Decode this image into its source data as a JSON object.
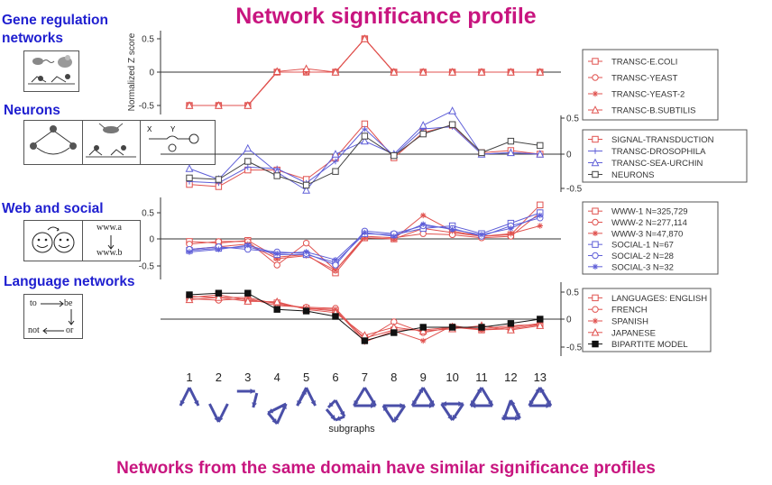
{
  "page": {
    "title": "Network significance profile",
    "footer": "Networks from the same domain have similar significance profiles"
  },
  "sections": [
    {
      "label": "Gene regulation networks"
    },
    {
      "label": "Neurons"
    },
    {
      "label": "Web and social"
    },
    {
      "label": "Language networks"
    }
  ],
  "icons": {
    "web": {
      "top": "www.a",
      "bottom": "www.b"
    },
    "language": {
      "to": "to",
      "be": "be",
      "not": "not",
      "or": "or"
    }
  },
  "colors": {
    "title": "#c8157f",
    "section_label": "#1f1fd0",
    "red": "#e0524f",
    "blue": "#5f5fd8",
    "gray": "#444444",
    "black": "#111111"
  },
  "chart_data": {
    "type": "line",
    "x": [
      1,
      2,
      3,
      4,
      5,
      6,
      7,
      8,
      9,
      10,
      11,
      12,
      13
    ],
    "xlabel": "subgraphs",
    "panels": [
      {
        "ylabel": "Normalized Z score",
        "yticks": [
          "0.5",
          "0",
          "-0.5"
        ],
        "ylim": [
          -0.7,
          0.65
        ],
        "axis_side": "left",
        "series": [
          {
            "name": "TRANSC-E.COLI",
            "color": "#e0524f",
            "marker": "square",
            "values": [
              -0.5,
              -0.5,
              -0.5,
              0,
              0,
              0,
              0.5,
              0,
              0,
              0,
              0,
              0,
              0
            ]
          },
          {
            "name": "TRANSC-YEAST",
            "color": "#e0524f",
            "marker": "circle",
            "values": [
              -0.5,
              -0.5,
              -0.5,
              0,
              0,
              0,
              0.5,
              0,
              0,
              0,
              0,
              0,
              0
            ]
          },
          {
            "name": "TRANSC-YEAST-2",
            "color": "#e0524f",
            "marker": "star",
            "values": [
              -0.5,
              -0.5,
              -0.5,
              0,
              0,
              0,
              0.5,
              0,
              0,
              0,
              0,
              0,
              0
            ]
          },
          {
            "name": "TRANSC-B.SUBTILIS",
            "color": "#e0524f",
            "marker": "triangle",
            "values": [
              -0.5,
              -0.5,
              -0.5,
              0.01,
              0.05,
              0,
              0.5,
              0,
              0,
              0,
              0,
              0,
              0
            ]
          }
        ]
      },
      {
        "ylabel": "",
        "yticks": [
          "0.5",
          "0",
          "-0.5"
        ],
        "ylim": [
          -0.6,
          0.6
        ],
        "axis_side": "right",
        "series": [
          {
            "name": "SIGNAL-TRANSDUCTION",
            "color": "#e0524f",
            "marker": "square",
            "values": [
              -0.42,
              -0.45,
              -0.22,
              -0.22,
              -0.35,
              -0.05,
              0.42,
              -0.05,
              0.3,
              0.4,
              0.02,
              0.05,
              0.0
            ]
          },
          {
            "name": "TRANSC-DROSOPHILA",
            "color": "#5f5fd8",
            "marker": "plus",
            "values": [
              -0.38,
              -0.4,
              -0.18,
              -0.2,
              -0.4,
              -0.1,
              0.35,
              -0.02,
              0.35,
              0.38,
              0.0,
              0.02,
              0.0
            ]
          },
          {
            "name": "TRANSC-SEA-URCHIN",
            "color": "#5f5fd8",
            "marker": "triangle",
            "values": [
              -0.2,
              -0.35,
              0.08,
              -0.25,
              -0.5,
              0.0,
              0.18,
              0.0,
              0.4,
              0.6,
              0.0,
              0.02,
              0.0
            ]
          },
          {
            "name": "NEURONS",
            "color": "#444444",
            "marker": "square",
            "values": [
              -0.33,
              -0.35,
              -0.1,
              -0.3,
              -0.43,
              -0.24,
              0.25,
              -0.02,
              0.28,
              0.41,
              0.02,
              0.18,
              0.12
            ]
          }
        ]
      },
      {
        "ylabel": "",
        "yticks": [
          "0.5",
          "0",
          "-0.5"
        ],
        "ylim": [
          -0.75,
          0.72
        ],
        "axis_side": "left",
        "series": [
          {
            "name": "WWW-1 N=325,729",
            "color": "#e0524f",
            "marker": "square",
            "values": [
              -0.05,
              -0.08,
              -0.03,
              -0.35,
              -0.3,
              -0.65,
              0.02,
              0.0,
              0.2,
              0.12,
              0.05,
              0.08,
              0.65
            ]
          },
          {
            "name": "WWW-2 N=277,114",
            "color": "#e0524f",
            "marker": "circle",
            "values": [
              -0.1,
              -0.05,
              -0.05,
              -0.5,
              -0.08,
              -0.6,
              0.05,
              0.02,
              0.1,
              0.08,
              0.02,
              0.05,
              0.5
            ]
          },
          {
            "name": "WWW-3 N=47,870",
            "color": "#e0524f",
            "marker": "star",
            "values": [
              -0.2,
              -0.15,
              -0.1,
              -0.38,
              -0.32,
              -0.6,
              0.02,
              0.0,
              0.45,
              0.15,
              0.05,
              0.1,
              0.25
            ]
          },
          {
            "name": "SOCIAL-1 N=67",
            "color": "#5f5fd8",
            "marker": "square",
            "values": [
              -0.22,
              -0.18,
              -0.15,
              -0.3,
              -0.3,
              -0.45,
              0.1,
              0.08,
              0.2,
              0.25,
              0.1,
              0.3,
              0.5
            ]
          },
          {
            "name": "SOCIAL-2 N=28",
            "color": "#5f5fd8",
            "marker": "circle",
            "values": [
              -0.2,
              -0.15,
              -0.2,
              -0.25,
              -0.28,
              -0.5,
              0.15,
              0.1,
              0.25,
              0.2,
              0.05,
              0.25,
              0.4
            ]
          },
          {
            "name": "SOCIAL-3 N=32",
            "color": "#5f5fd8",
            "marker": "star",
            "values": [
              -0.25,
              -0.2,
              -0.12,
              -0.28,
              -0.25,
              -0.4,
              0.12,
              0.05,
              0.28,
              0.18,
              0.08,
              0.2,
              0.45
            ]
          }
        ]
      },
      {
        "ylabel": "",
        "yticks": [
          "0.5",
          "0",
          "-0.5"
        ],
        "ylim": [
          -0.62,
          0.62
        ],
        "axis_side": "right",
        "series": [
          {
            "name": "LANGUAGES: ENGLISH",
            "color": "#e0524f",
            "marker": "square",
            "values": [
              0.4,
              0.45,
              0.35,
              0.3,
              0.2,
              0.15,
              -0.35,
              -0.2,
              -0.2,
              -0.15,
              -0.2,
              -0.18,
              -0.1
            ]
          },
          {
            "name": "FRENCH",
            "color": "#e0524f",
            "marker": "circle",
            "values": [
              0.38,
              0.35,
              0.38,
              0.25,
              0.22,
              0.2,
              -0.38,
              -0.05,
              -0.25,
              -0.15,
              -0.18,
              -0.12,
              -0.1
            ]
          },
          {
            "name": "SPANISH",
            "color": "#e0524f",
            "marker": "star",
            "values": [
              0.42,
              0.4,
              0.4,
              0.28,
              0.2,
              0.18,
              -0.42,
              -0.22,
              -0.4,
              -0.12,
              -0.2,
              -0.15,
              -0.08
            ]
          },
          {
            "name": "JAPANESE",
            "color": "#e0524f",
            "marker": "triangle",
            "values": [
              0.36,
              0.4,
              0.33,
              0.32,
              0.18,
              0.12,
              -0.3,
              -0.15,
              -0.22,
              -0.18,
              -0.12,
              -0.2,
              -0.12
            ]
          },
          {
            "name": "BIPARTITE MODEL",
            "color": "#111111",
            "marker": "filled-square",
            "values": [
              0.45,
              0.48,
              0.48,
              0.18,
              0.15,
              0.05,
              -0.4,
              -0.25,
              -0.15,
              -0.15,
              -0.15,
              -0.08,
              0.0
            ]
          }
        ]
      }
    ]
  }
}
